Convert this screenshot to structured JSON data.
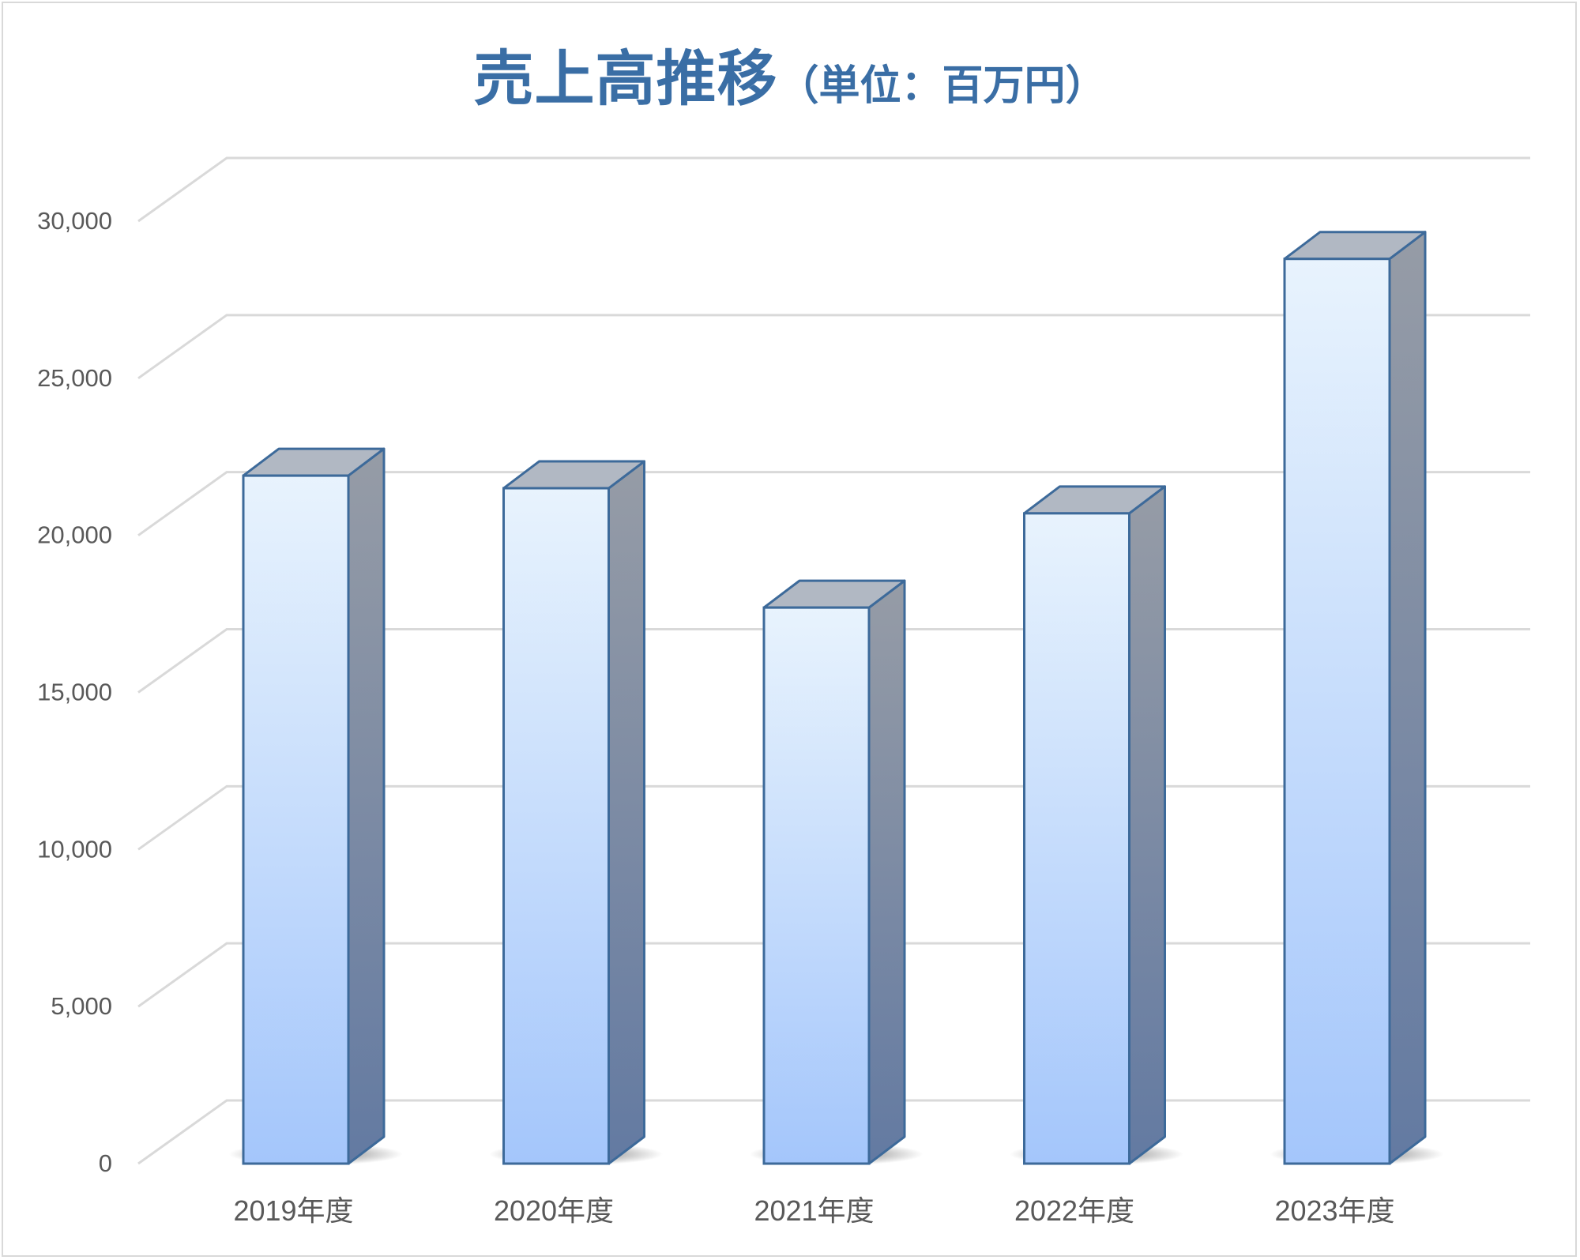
{
  "chart_data": {
    "type": "bar",
    "title": "売上高推移",
    "subtitle": "（単位：百万円）",
    "xlabel": "",
    "ylabel": "",
    "categories": [
      "2019年度",
      "2020年度",
      "2021年度",
      "2022年度",
      "2023年度"
    ],
    "values": [
      21900,
      21500,
      17700,
      20700,
      28800
    ],
    "ylim": [
      0,
      30000
    ],
    "yticks": [
      0,
      5000,
      10000,
      15000,
      20000,
      25000,
      30000
    ],
    "ytick_labels": [
      "0",
      "5,000",
      "10,000",
      "15,000",
      "20,000",
      "25,000",
      "30,000"
    ],
    "grid": true,
    "legend": "none",
    "style": "3d-column",
    "colors": {
      "bar_top": "#e8f3fd",
      "bar_bottom": "#a4c6fb",
      "bar_side_top": "#969ca6",
      "bar_side_bottom": "#637aa2",
      "bar_cap": "#b1b8c3",
      "bar_edge": "#3d6a9a",
      "grid": "#d9d9d9",
      "title": "#3a6ea5",
      "axis_text": "#595959"
    }
  }
}
